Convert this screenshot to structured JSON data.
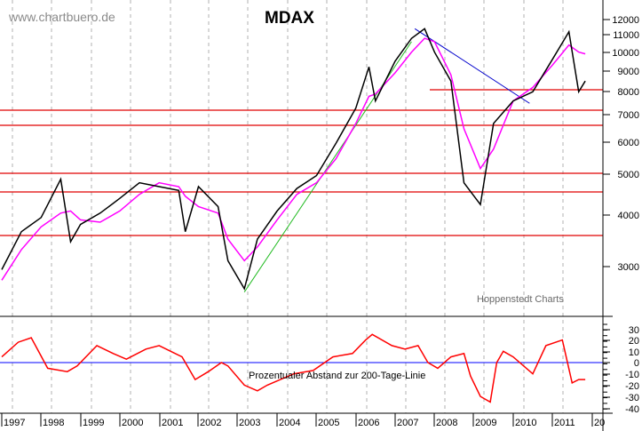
{
  "header": {
    "watermark": "www.chartbuero.de",
    "title": "MDAX"
  },
  "main_panel": {
    "credit": "Hoppenstedt Charts",
    "y_axis_ticks": [
      {
        "label": "12000",
        "y": 22
      },
      {
        "label": "11000",
        "y": 39
      },
      {
        "label": "10000",
        "y": 59
      },
      {
        "label": "9000",
        "y": 80
      },
      {
        "label": "8000",
        "y": 103
      },
      {
        "label": "7000",
        "y": 129
      },
      {
        "label": "6000",
        "y": 160
      },
      {
        "label": "5000",
        "y": 196
      },
      {
        "label": "4000",
        "y": 242
      },
      {
        "label": "3000",
        "y": 300
      }
    ],
    "horizontal_lines_y": [
      101,
      124,
      141,
      195,
      216,
      265
    ],
    "horizontal_lines_x0": [
      484,
      0,
      0,
      0,
      0,
      0
    ]
  },
  "lower_panel": {
    "label": "Prozentualer Abstand zur 200-Tage-Linie",
    "y_axis_ticks": [
      {
        "label": "30",
        "y": 371
      },
      {
        "label": "20",
        "y": 383
      },
      {
        "label": "10",
        "y": 396
      },
      {
        "label": "0",
        "y": 408
      },
      {
        "label": "-10",
        "y": 421
      },
      {
        "label": "-20",
        "y": 434
      },
      {
        "label": "-30",
        "y": 447
      },
      {
        "label": "-40",
        "y": 460
      }
    ]
  },
  "x_axis": {
    "labels": [
      "1997",
      "1998",
      "1999",
      "2000",
      "2001",
      "2002",
      "2003",
      "2004",
      "2005",
      "2006",
      "2007",
      "2008",
      "2009",
      "2010",
      "2011",
      "20"
    ],
    "positions": [
      2,
      46,
      91,
      135,
      180,
      223,
      267,
      312,
      356,
      401,
      445,
      489,
      533,
      578,
      622,
      667
    ]
  },
  "colors": {
    "price": "#000000",
    "ma200": "#ff00ff",
    "support": "#e00000",
    "uptrend": "#22bb22",
    "downtrend": "#0000cc",
    "oscillator": "#ff0000",
    "zero_line": "#0000ff",
    "grid": "#b0b0b0"
  },
  "chart_data": [
    {
      "type": "line",
      "title": "MDAX",
      "xlabel": "",
      "ylabel": "",
      "y_scale": "log",
      "ylim": [
        2400,
        12500
      ],
      "grid": true,
      "x": [
        "1997-01",
        "1997-07",
        "1998-01",
        "1998-07",
        "1998-10",
        "1999-01",
        "1999-07",
        "2000-01",
        "2000-07",
        "2001-01",
        "2001-07",
        "2001-09",
        "2002-01",
        "2002-07",
        "2002-10",
        "2003-03",
        "2003-07",
        "2004-01",
        "2004-07",
        "2005-01",
        "2005-07",
        "2006-01",
        "2006-05",
        "2006-07",
        "2007-01",
        "2007-06",
        "2007-10",
        "2008-01",
        "2008-06",
        "2008-10",
        "2009-03",
        "2009-07",
        "2010-01",
        "2010-07",
        "2011-01",
        "2011-06",
        "2011-09",
        "2011-11"
      ],
      "series": [
        {
          "name": "MDAX",
          "values": [
            2950,
            3650,
            3950,
            4900,
            3450,
            3800,
            4050,
            4400,
            4800,
            4700,
            4600,
            3650,
            4700,
            4200,
            3100,
            2650,
            3500,
            4100,
            4650,
            5000,
            6000,
            7300,
            9200,
            7600,
            9500,
            10800,
            11400,
            10000,
            8500,
            4800,
            4250,
            6700,
            7600,
            8000,
            9600,
            11200,
            8000,
            8500
          ]
        },
        {
          "name": "200-Tage-Linie",
          "values": [
            2780,
            3300,
            3750,
            4050,
            4100,
            3900,
            3850,
            4100,
            4500,
            4800,
            4700,
            4450,
            4200,
            4050,
            3500,
            3100,
            3350,
            3900,
            4500,
            4800,
            5500,
            6700,
            7800,
            7900,
            8900,
            10000,
            10800,
            10600,
            8800,
            6500,
            5200,
            5800,
            7600,
            8200,
            9300,
            10400,
            10000,
            9900
          ]
        }
      ],
      "support_lines": [
        8000,
        7200,
        6600,
        5100,
        4600,
        3600
      ],
      "trendlines": [
        {
          "name": "uptrend",
          "from": [
            "2003-03",
            2600
          ],
          "to": [
            "2007-06",
            10600
          ]
        },
        {
          "name": "downtrend",
          "from": [
            "2007-07",
            11400
          ],
          "to": [
            "2010-06",
            7500
          ]
        }
      ],
      "annotations": [
        "www.chartbuero.de",
        "Hoppenstedt Charts"
      ]
    },
    {
      "type": "line",
      "title": "Prozentualer Abstand zur 200-Tage-Linie",
      "ylabel": "%",
      "ylim": [
        -45,
        38
      ],
      "y_ticks": [
        30,
        20,
        10,
        0,
        -10,
        -20,
        -30,
        -40
      ],
      "x": [
        "1997-01",
        "1997-06",
        "1997-10",
        "1998-03",
        "1998-09",
        "1998-12",
        "1999-06",
        "1999-11",
        "2000-03",
        "2000-09",
        "2001-01",
        "2001-08",
        "2001-12",
        "2002-04",
        "2002-08",
        "2002-10",
        "2003-03",
        "2003-07",
        "2003-10",
        "2004-06",
        "2004-12",
        "2005-06",
        "2005-12",
        "2006-04",
        "2006-06",
        "2006-12",
        "2007-04",
        "2007-08",
        "2007-11",
        "2008-02",
        "2008-06",
        "2008-10",
        "2008-12",
        "2009-03",
        "2009-06",
        "2009-08",
        "2009-10",
        "2010-01",
        "2010-07",
        "2010-11",
        "2011-04",
        "2011-07",
        "2011-09",
        "2011-11"
      ],
      "series": [
        {
          "name": "Abstand",
          "values": [
            5,
            18,
            22,
            -5,
            -8,
            -3,
            15,
            8,
            3,
            12,
            15,
            5,
            -15,
            -8,
            0,
            -3,
            -20,
            -25,
            -20,
            -10,
            -7,
            5,
            8,
            20,
            25,
            15,
            12,
            15,
            0,
            -5,
            5,
            8,
            -12,
            -30,
            -35,
            0,
            10,
            5,
            -10,
            15,
            20,
            -18,
            -15,
            -15
          ]
        }
      ]
    }
  ]
}
